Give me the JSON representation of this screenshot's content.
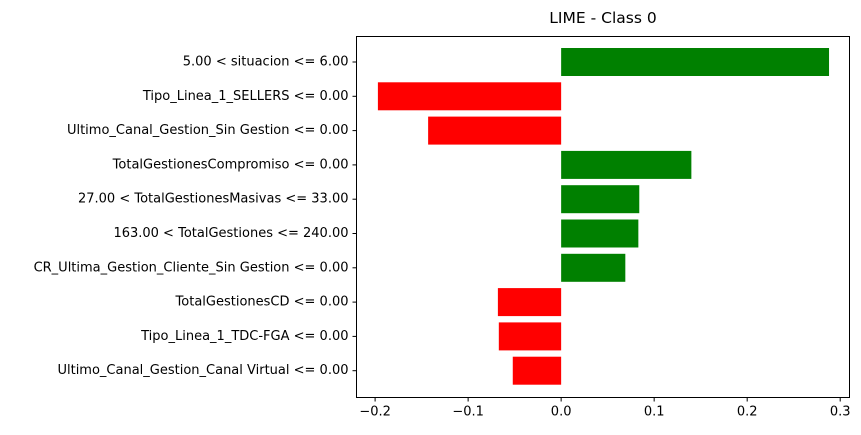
{
  "chart_data": {
    "type": "bar",
    "orientation": "horizontal",
    "title": "LIME - Class 0",
    "xlabel": "",
    "ylabel": "",
    "xlim": [
      -0.22,
      0.31
    ],
    "xticks": [
      {
        "value": -0.2,
        "label": "−0.2"
      },
      {
        "value": -0.1,
        "label": "−0.1"
      },
      {
        "value": 0.0,
        "label": "0.0"
      },
      {
        "value": 0.1,
        "label": "0.1"
      },
      {
        "value": 0.2,
        "label": "0.2"
      },
      {
        "value": 0.3,
        "label": "0.3"
      }
    ],
    "grid": false,
    "positive_color": "#008000",
    "negative_color": "#ff0000",
    "categories": [
      "5.00 < situacion <= 6.00",
      "Tipo_Linea_1_SELLERS <= 0.00",
      "Ultimo_Canal_Gestion_Sin Gestion <= 0.00",
      "TotalGestionesCompromiso <= 0.00",
      "27.00 < TotalGestionesMasivas <= 33.00",
      "163.00 < TotalGestiones <= 240.00",
      "CR_Ultima_Gestion_Cliente_Sin Gestion <= 0.00",
      "TotalGestionesCD <= 0.00",
      "Tipo_Linea_1_TDC-FGA <= 0.00",
      "Ultimo_Canal_Gestion_Canal Virtual <= 0.00"
    ],
    "values": [
      0.288,
      -0.197,
      -0.143,
      0.14,
      0.084,
      0.083,
      0.069,
      -0.068,
      -0.067,
      -0.052
    ]
  }
}
